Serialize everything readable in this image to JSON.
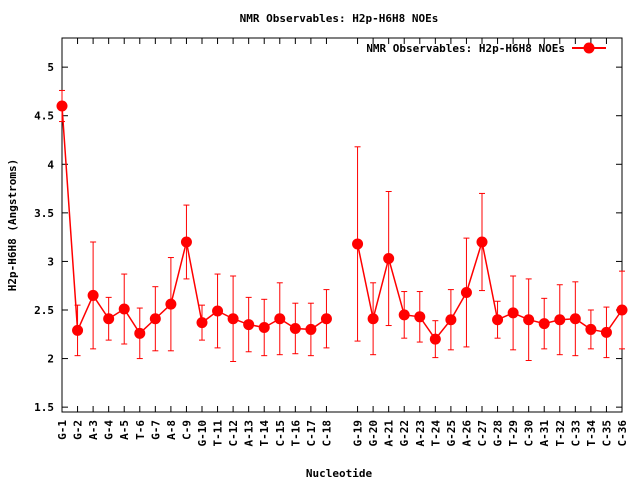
{
  "chart_data": {
    "type": "line",
    "title": "NMR Observables: H2p-H6H8 NOEs",
    "xlabel": "Nucleotide",
    "ylabel": "H2p-H6H8 (Angstroms)",
    "ylim": [
      1.45,
      5.3
    ],
    "yticks": [
      1.5,
      2,
      2.5,
      3,
      3.5,
      4,
      4.5,
      5
    ],
    "ytick_labels": [
      "1.5",
      "2",
      "2.5",
      "3",
      "3.5",
      "4",
      "4.5",
      "5"
    ],
    "x_slots": 37,
    "legend_position": "top-right",
    "colors": {
      "series": "#ff0000"
    },
    "series": [
      {
        "name": "NMR Observables: H2p-H6H8 NOEs",
        "segments": [
          [
            {
              "label": "G-1",
              "y": 4.6,
              "err": 0.16
            },
            {
              "label": "G-2",
              "y": 2.29,
              "err": 0.26
            },
            {
              "label": "A-3",
              "y": 2.65,
              "err": 0.55
            },
            {
              "label": "G-4",
              "y": 2.41,
              "err": 0.22
            },
            {
              "label": "A-5",
              "y": 2.51,
              "err": 0.36
            },
            {
              "label": "T-6",
              "y": 2.26,
              "err": 0.26
            },
            {
              "label": "G-7",
              "y": 2.41,
              "err": 0.33
            },
            {
              "label": "A-8",
              "y": 2.56,
              "err": 0.48
            },
            {
              "label": "C-9",
              "y": 3.2,
              "err": 0.38
            },
            {
              "label": "G-10",
              "y": 2.37,
              "err": 0.18
            },
            {
              "label": "T-11",
              "y": 2.49,
              "err": 0.38
            },
            {
              "label": "C-12",
              "y": 2.41,
              "err": 0.44
            },
            {
              "label": "A-13",
              "y": 2.35,
              "err": 0.28
            },
            {
              "label": "T-14",
              "y": 2.32,
              "err": 0.29
            },
            {
              "label": "C-15",
              "y": 2.41,
              "err": 0.37
            },
            {
              "label": "T-16",
              "y": 2.31,
              "err": 0.26
            },
            {
              "label": "C-17",
              "y": 2.3,
              "err": 0.27
            },
            {
              "label": "C-18",
              "y": 2.41,
              "err": 0.3
            }
          ],
          [
            {
              "label": "G-19",
              "y": 3.18,
              "err": 1.0
            },
            {
              "label": "G-20",
              "y": 2.41,
              "err": 0.37
            },
            {
              "label": "A-21",
              "y": 3.03,
              "err": 0.69
            },
            {
              "label": "G-22",
              "y": 2.45,
              "err": 0.24
            },
            {
              "label": "A-23",
              "y": 2.43,
              "err": 0.26
            },
            {
              "label": "T-24",
              "y": 2.2,
              "err": 0.19
            },
            {
              "label": "G-25",
              "y": 2.4,
              "err": 0.31
            },
            {
              "label": "A-26",
              "y": 2.68,
              "err": 0.56
            },
            {
              "label": "C-27",
              "y": 3.2,
              "err": 0.5
            },
            {
              "label": "G-28",
              "y": 2.4,
              "err": 0.19
            },
            {
              "label": "T-29",
              "y": 2.47,
              "err": 0.38
            },
            {
              "label": "C-30",
              "y": 2.4,
              "err": 0.42
            },
            {
              "label": "A-31",
              "y": 2.36,
              "err": 0.26
            },
            {
              "label": "T-32",
              "y": 2.4,
              "err": 0.36
            },
            {
              "label": "C-33",
              "y": 2.41,
              "err": 0.38
            },
            {
              "label": "T-34",
              "y": 2.3,
              "err": 0.2
            },
            {
              "label": "C-35",
              "y": 2.27,
              "err": 0.26
            },
            {
              "label": "C-36",
              "y": 2.5,
              "err": 0.4
            }
          ]
        ]
      }
    ]
  }
}
